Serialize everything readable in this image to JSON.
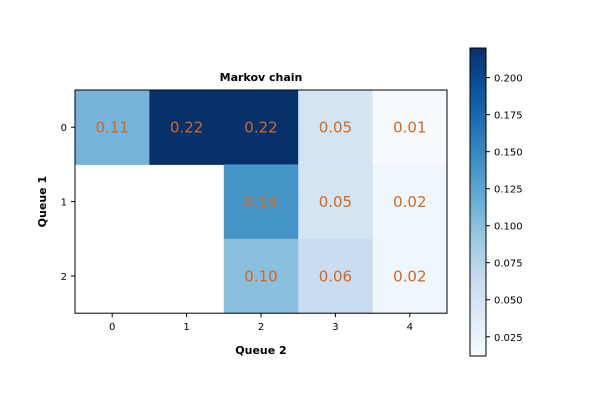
{
  "chart_data": {
    "type": "heatmap",
    "title": "Markov chain",
    "xlabel": "Queue 2",
    "ylabel": "Queue 1",
    "x_categories": [
      "0",
      "1",
      "2",
      "3",
      "4"
    ],
    "y_categories": [
      "0",
      "1",
      "2"
    ],
    "values": [
      [
        0.11,
        0.22,
        0.22,
        0.05,
        0.01
      ],
      [
        null,
        null,
        0.14,
        0.05,
        0.02
      ],
      [
        null,
        null,
        0.1,
        0.06,
        0.02
      ]
    ],
    "cell_labels": [
      [
        "0.11",
        "0.22",
        "0.22",
        "0.05",
        "0.01"
      ],
      [
        "",
        "",
        "0.14",
        "0.05",
        "0.02"
      ],
      [
        "",
        "",
        "0.10",
        "0.06",
        "0.02"
      ]
    ],
    "colormap": "Blues",
    "vmin": 0.012,
    "vmax": 0.22,
    "colorbar_ticks": [
      "0.025",
      "0.050",
      "0.075",
      "0.100",
      "0.125",
      "0.150",
      "0.175",
      "0.200"
    ],
    "colorbar_tick_values": [
      0.025,
      0.05,
      0.075,
      0.1,
      0.125,
      0.15,
      0.175,
      0.2
    ],
    "cell_label_color": "#d2691e",
    "grid": false
  }
}
